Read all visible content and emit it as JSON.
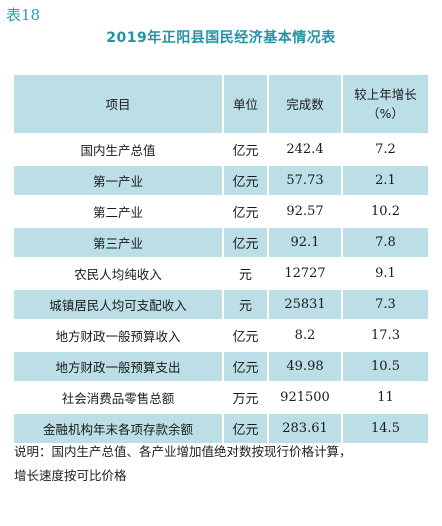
{
  "table_label": "表18",
  "title": "2019年正阳县国民经济基本情况表",
  "headers": {
    "item": "项目",
    "unit": "单位",
    "value": "完成数",
    "growth_line1": "较上年增长",
    "growth_line2": "（%）"
  },
  "rows": [
    {
      "item": "国内生产总值",
      "unit": "亿元",
      "value": "242.4",
      "growth": "7.2"
    },
    {
      "item": "第一产业",
      "unit": "亿元",
      "value": "57.73",
      "growth": "2.1"
    },
    {
      "item": "第二产业",
      "unit": "亿元",
      "value": "92.57",
      "growth": "10.2"
    },
    {
      "item": "第三产业",
      "unit": "亿元",
      "value": "92.1",
      "growth": "7.8"
    },
    {
      "item": "农民人均纯收入",
      "unit": "元",
      "value": "12727",
      "growth": "9.1"
    },
    {
      "item": "城镇居民人均可支配收入",
      "unit": "元",
      "value": "25831",
      "growth": "7.3"
    },
    {
      "item": "地方财政一般预算收入",
      "unit": "亿元",
      "value": "8.2",
      "growth": "17.3"
    },
    {
      "item": "地方财政一般预算支出",
      "unit": "亿元",
      "value": "49.98",
      "growth": "10.5"
    },
    {
      "item": "社会消费品零售总额",
      "unit": "万元",
      "value": "921500",
      "growth": "11"
    },
    {
      "item": "金融机构年末各项存款余额",
      "unit": "亿元",
      "value": "283.61",
      "growth": "14.5"
    }
  ],
  "note_line1": "说明：国内生产总值、各产业增加值绝对数按现行价格计算，",
  "note_line2": "增长速度按可比价格",
  "colors": {
    "accent": "#2592a8",
    "stripe": "#bcdee7"
  }
}
